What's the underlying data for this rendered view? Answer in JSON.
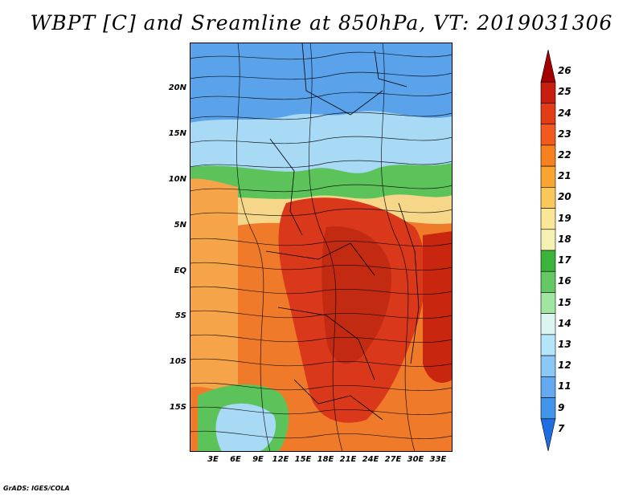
{
  "title": "WBPT [C] and Sreamline at 850hPa, VT: 2019031306",
  "credit": "GrADS: IGES/COLA",
  "map": {
    "lat_labels": [
      "20N",
      "15N",
      "10N",
      "5N",
      "EQ",
      "5S",
      "10S",
      "15S"
    ],
    "lon_labels": [
      "3E",
      "6E",
      "9E",
      "12E",
      "15E",
      "18E",
      "21E",
      "24E",
      "27E",
      "30E",
      "33E"
    ]
  },
  "colorbar": {
    "levels": [
      "26",
      "25",
      "24",
      "23",
      "22",
      "21",
      "20",
      "19",
      "18",
      "17",
      "16",
      "15",
      "14",
      "13",
      "12",
      "11",
      "9",
      "7"
    ],
    "colors": [
      "#a50000",
      "#c81e0f",
      "#e13c14",
      "#f05a1e",
      "#f5821e",
      "#faa532",
      "#fac85a",
      "#fae696",
      "#f5f0b4",
      "#3cb43c",
      "#64c864",
      "#a0e6a0",
      "#dcf5f0",
      "#b4e6fa",
      "#8cc8f5",
      "#64aaf0",
      "#4196eb",
      "#1e6ee1"
    ]
  },
  "colors": {
    "hot": "#d9391a",
    "warm": "#ef7b2a",
    "mild": "#f6b75a",
    "green": "#5cc35a",
    "cool": "#a8daf5",
    "cold": "#4f93e6"
  }
}
